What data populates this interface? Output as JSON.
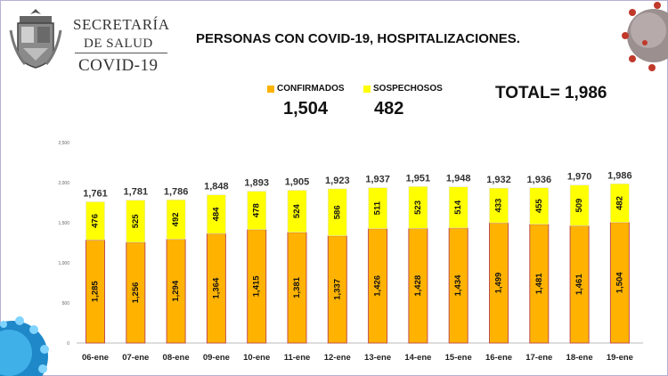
{
  "header": {
    "org_line1": "SECRETARÍA",
    "org_line2": "DE SALUD",
    "org_line3": "COVID-19",
    "title": "PERSONAS CON COVID-19, HOSPITALIZACIONES."
  },
  "legend": {
    "confirmed_label": "CONFIRMADOS",
    "suspected_label": "SOSPECHOSOS",
    "confirmed_total": "1,504",
    "suspected_total": "482",
    "grand_total": "TOTAL= 1,986"
  },
  "colors": {
    "confirmed": "#FFB300",
    "suspected": "#FFFF00",
    "bar_outline": "#C0504D"
  },
  "icons": {
    "logo": "state-coat-of-arms-icon",
    "virus_top_right": "coronavirus-icon",
    "virus_bottom_left": "coronavirus-icon"
  },
  "chart_data": {
    "type": "bar",
    "stacked": true,
    "categories": [
      "06-ene",
      "07-ene",
      "08-ene",
      "09-ene",
      "10-ene",
      "11-ene",
      "12-ene",
      "13-ene",
      "14-ene",
      "15-ene",
      "16-ene",
      "17-ene",
      "18-ene",
      "19-ene"
    ],
    "series": [
      {
        "name": "CONFIRMADOS",
        "values": [
          1285,
          1256,
          1294,
          1364,
          1415,
          1381,
          1337,
          1426,
          1428,
          1434,
          1499,
          1481,
          1461,
          1504
        ]
      },
      {
        "name": "SOSPECHOSOS",
        "values": [
          476,
          525,
          492,
          484,
          478,
          524,
          586,
          511,
          523,
          514,
          433,
          455,
          509,
          482
        ]
      }
    ],
    "totals": [
      1761,
      1781,
      1786,
      1848,
      1893,
      1905,
      1923,
      1937,
      1951,
      1948,
      1932,
      1936,
      1970,
      1986
    ],
    "ylim": [
      0,
      2500
    ],
    "yticks": [
      "0",
      "500",
      "1,000",
      "1,500",
      "2,000",
      "2,500"
    ],
    "grid": false,
    "legend_position": "top"
  }
}
